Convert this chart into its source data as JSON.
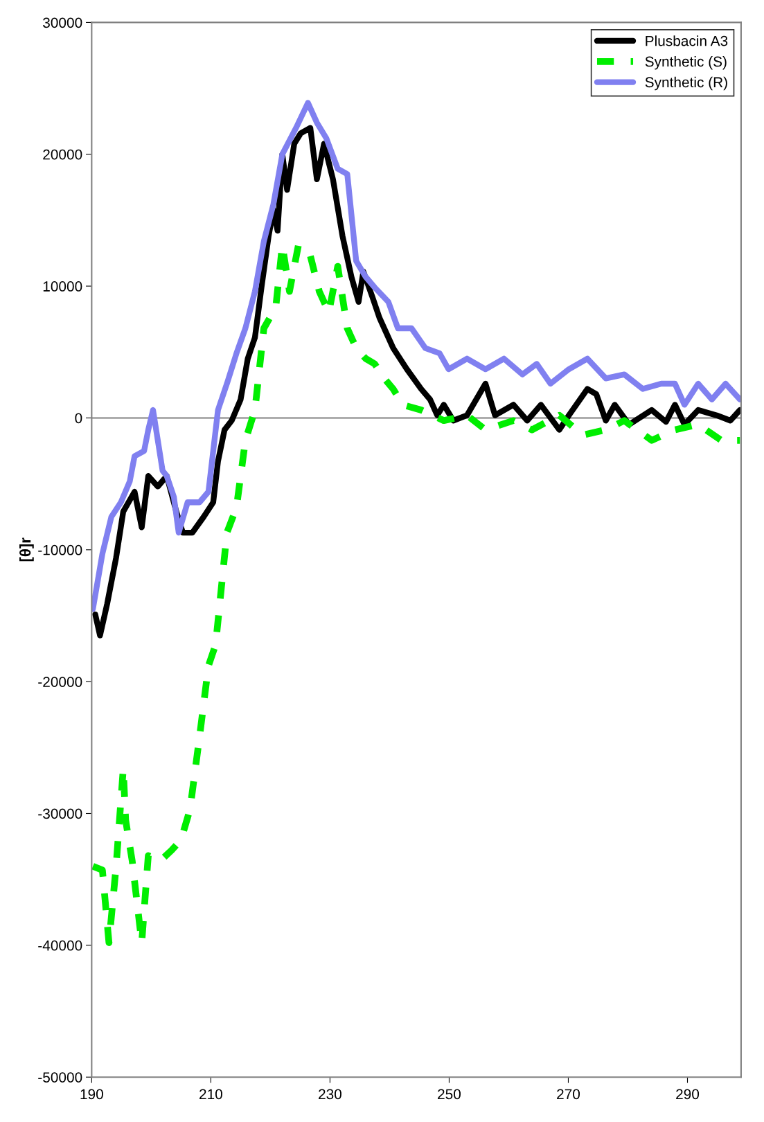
{
  "chart_data": {
    "type": "line",
    "ylabel": "[θ]r",
    "xlim": [
      190,
      299
    ],
    "xticks": [
      190,
      210,
      230,
      250,
      270,
      290
    ],
    "ylim": [
      -50000,
      30000
    ],
    "yticks": [
      -50000,
      -40000,
      -30000,
      -20000,
      -10000,
      0,
      10000,
      20000,
      30000
    ],
    "grid": false,
    "ref_lines": [
      {
        "axis": "y",
        "value": 0,
        "color": "#808080"
      }
    ],
    "legend": "top right",
    "marker": "none",
    "series": [
      {
        "name": "Plusbacin A3",
        "color": "#000000",
        "line_style": "solid",
        "x": [
          190.6,
          191.4,
          192.6,
          194.1,
          195.3,
          197.2,
          198.4,
          199.5,
          201.1,
          202.6,
          204.2,
          205.3,
          206.9,
          208.8,
          210.4,
          211.2,
          212.3,
          213.5,
          215.0,
          216.2,
          217.4,
          218.5,
          219.7,
          220.5,
          221.2,
          222.0,
          222.8,
          224.0,
          225.1,
          226.7,
          227.8,
          229.0,
          230.5,
          232.1,
          233.6,
          234.8,
          235.6,
          237.1,
          238.3,
          240.6,
          242.9,
          245.3,
          246.8,
          248.0,
          249.1,
          250.7,
          253.0,
          256.1,
          257.7,
          260.8,
          263.1,
          265.4,
          268.5,
          270.1,
          273.2,
          274.7,
          276.3,
          277.8,
          280.2,
          284.0,
          286.4,
          287.9,
          289.5,
          291.8,
          294.9,
          297.2,
          298.8
        ],
        "values": [
          -14900,
          -16500,
          -14100,
          -10600,
          -7100,
          -5600,
          -8300,
          -4400,
          -5200,
          -4400,
          -7100,
          -8700,
          -8700,
          -7500,
          -6400,
          -3300,
          -900,
          -200,
          1400,
          4500,
          6100,
          9900,
          13800,
          15800,
          14200,
          20000,
          17300,
          20800,
          21600,
          22000,
          18100,
          20800,
          18100,
          13800,
          10700,
          8800,
          11100,
          9200,
          7600,
          5300,
          3700,
          2200,
          1400,
          200,
          1000,
          -200,
          200,
          2600,
          200,
          1000,
          -200,
          1000,
          -900,
          200,
          2200,
          1800,
          -200,
          1000,
          -500,
          600,
          -300,
          1000,
          -500,
          600,
          200,
          -200,
          600
        ]
      },
      {
        "name": "Synthetic (S)",
        "color": "#00ee00",
        "line_style": "dashed",
        "x": [
          190.2,
          191.8,
          192.9,
          194.1,
          195.3,
          195.7,
          196.8,
          198.4,
          199.5,
          201.5,
          203.4,
          205.0,
          206.5,
          208.1,
          209.6,
          210.8,
          212.7,
          214.3,
          215.8,
          217.4,
          218.9,
          220.9,
          222.0,
          223.2,
          224.7,
          226.7,
          228.2,
          229.8,
          231.3,
          232.9,
          234.4,
          236.0,
          237.5,
          239.1,
          240.6,
          242.2,
          245.3,
          249.1,
          253.0,
          256.1,
          260.8,
          263.9,
          268.5,
          272.4,
          276.3,
          279.4,
          284.0,
          287.9,
          291.8,
          295.7,
          298.8
        ],
        "values": [
          -34000,
          -34300,
          -39800,
          -34000,
          -26600,
          -30500,
          -33600,
          -39800,
          -33200,
          -33600,
          -32800,
          -32000,
          -29700,
          -24200,
          -18800,
          -17200,
          -8700,
          -6800,
          -1700,
          600,
          6800,
          8400,
          13100,
          9600,
          13100,
          12300,
          9600,
          8000,
          11500,
          6800,
          5300,
          4500,
          4100,
          3000,
          2200,
          1000,
          600,
          -200,
          200,
          -900,
          -200,
          -900,
          200,
          -1300,
          -900,
          -200,
          -1700,
          -900,
          -500,
          -1700,
          -1700
        ]
      },
      {
        "name": "Synthetic (R)",
        "color": "#8080f0",
        "line_style": "solid",
        "x": [
          190.2,
          191.8,
          193.3,
          194.9,
          196.4,
          197.2,
          198.8,
          199.5,
          200.3,
          201.1,
          201.9,
          202.6,
          203.8,
          204.6,
          206.1,
          208.1,
          209.6,
          211.2,
          212.7,
          214.3,
          215.8,
          217.4,
          218.9,
          220.5,
          222.0,
          224.3,
          226.3,
          227.8,
          229.4,
          231.3,
          232.9,
          234.4,
          236.0,
          237.5,
          239.8,
          241.4,
          243.7,
          246.0,
          248.4,
          249.9,
          253.0,
          256.1,
          259.2,
          262.3,
          264.7,
          267.0,
          270.1,
          273.2,
          276.3,
          279.4,
          282.5,
          285.6,
          287.9,
          289.5,
          291.8,
          294.1,
          296.4,
          298.8
        ],
        "values": [
          -14500,
          -10300,
          -7500,
          -6400,
          -4800,
          -2900,
          -2500,
          -900,
          600,
          -1700,
          -4000,
          -4400,
          -6000,
          -8700,
          -6400,
          -6400,
          -5600,
          600,
          2600,
          4900,
          6800,
          9600,
          13400,
          16200,
          20000,
          22000,
          23900,
          22400,
          21200,
          18900,
          18500,
          11900,
          10700,
          9900,
          8800,
          6800,
          6800,
          5300,
          4900,
          3700,
          4500,
          3700,
          4500,
          3300,
          4100,
          2600,
          3700,
          4500,
          3000,
          3300,
          2200,
          2600,
          2600,
          1000,
          2600,
          1400,
          2600,
          1400
        ]
      }
    ]
  }
}
